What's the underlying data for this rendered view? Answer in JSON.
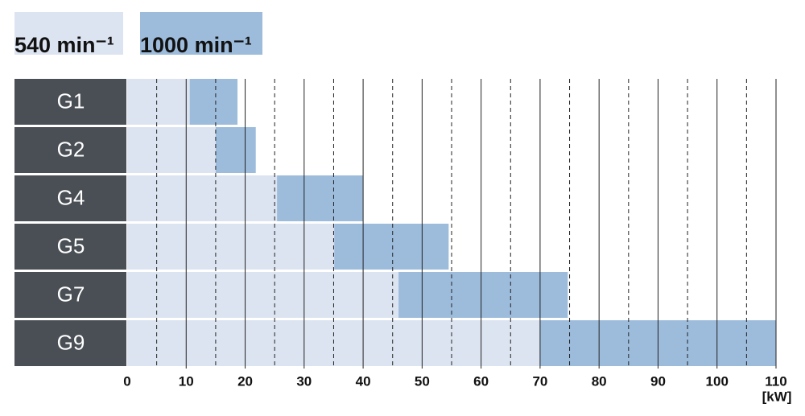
{
  "chart_data": {
    "type": "stacked-bar-horizontal",
    "categories": [
      "G1",
      "G2",
      "G4",
      "G5",
      "G7",
      "G9"
    ],
    "series": [
      {
        "name": "540 min⁻¹",
        "color": "#dde4f1",
        "values": [
          10.6,
          15.0,
          25.4,
          35.1,
          46.0,
          70.0
        ]
      },
      {
        "name": "1000 min⁻¹",
        "color": "#9dbcdc",
        "values": [
          8.1,
          6.8,
          14.6,
          19.4,
          28.7,
          40.0
        ]
      }
    ],
    "xlim": [
      0,
      110
    ],
    "xticks": [
      0,
      10,
      20,
      30,
      40,
      50,
      60,
      70,
      80,
      90,
      100,
      110
    ],
    "xminor": [
      5,
      15,
      25,
      35,
      45,
      55,
      65,
      75,
      85,
      95,
      105
    ],
    "xlabel": "[kW]",
    "grid": true
  }
}
